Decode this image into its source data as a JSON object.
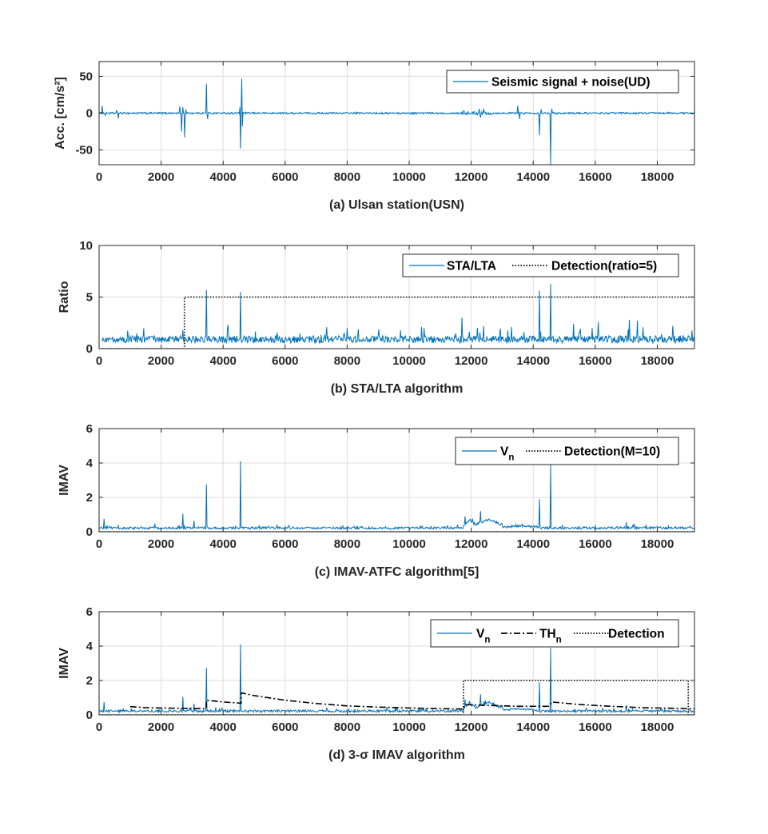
{
  "colors": {
    "signal": "#0072BD",
    "axis": "#262626",
    "grid": "#dcdcdc",
    "detection": "#000000"
  },
  "chart_data": [
    {
      "type": "line",
      "xlabel": "(a) Ulsan station(USN)",
      "ylabel": "Acc. [cm/s²]",
      "xlim": [
        0,
        19200
      ],
      "ylim": [
        -70,
        70
      ],
      "xticks": [
        0,
        2000,
        4000,
        6000,
        8000,
        10000,
        12000,
        14000,
        16000,
        18000
      ],
      "yticks": [
        -50,
        0,
        50
      ],
      "grid": true,
      "legend_position": "top-right",
      "series": [
        {
          "name": "Seismic signal + noise(UD)",
          "style": "solid",
          "baseline_noise": 1.2,
          "segments": [
            [
              11700,
              12700,
              2.2
            ]
          ],
          "spikes": [
            [
              100,
              10
            ],
            [
              200,
              -3
            ],
            [
              550,
              4
            ],
            [
              620,
              -7
            ],
            [
              2600,
              9
            ],
            [
              2650,
              -25
            ],
            [
              2700,
              8
            ],
            [
              2750,
              -33
            ],
            [
              2800,
              5
            ],
            [
              3450,
              40
            ],
            [
              3500,
              -8
            ],
            [
              4530,
              8
            ],
            [
              4560,
              -48
            ],
            [
              4590,
              47
            ],
            [
              4620,
              -18
            ],
            [
              11750,
              4
            ],
            [
              12250,
              6
            ],
            [
              12300,
              -6
            ],
            [
              12400,
              6
            ],
            [
              13500,
              10
            ],
            [
              13550,
              -8
            ],
            [
              14200,
              -30
            ],
            [
              14250,
              5
            ],
            [
              14550,
              -70
            ],
            [
              14600,
              6
            ]
          ]
        }
      ]
    },
    {
      "type": "line",
      "xlabel": "(b) STA/LTA algorithm",
      "ylabel": "Ratio",
      "xlim": [
        0,
        19200
      ],
      "ylim": [
        0,
        10
      ],
      "xticks": [
        0,
        2000,
        4000,
        6000,
        8000,
        10000,
        12000,
        14000,
        16000,
        18000
      ],
      "yticks": [
        0,
        5,
        10
      ],
      "grid": true,
      "legend_position": "top-right",
      "series": [
        {
          "name": "STA/LTA",
          "style": "solid",
          "baseline": 0.9,
          "noise": 0.35,
          "start": 100,
          "spikes": [
            [
              2700,
              1.8
            ],
            [
              3450,
              5.7
            ],
            [
              4150,
              2.3
            ],
            [
              4560,
              5.5
            ],
            [
              11700,
              3.0
            ],
            [
              12200,
              2.0
            ],
            [
              12400,
              2.2
            ],
            [
              13300,
              2.1
            ],
            [
              14200,
              5.6
            ],
            [
              14550,
              6.3
            ],
            [
              15300,
              2.4
            ],
            [
              16100,
              2.6
            ],
            [
              17100,
              2.8
            ],
            [
              17350,
              2.7
            ],
            [
              18500,
              2.2
            ]
          ]
        },
        {
          "name": "Detection(ratio=5)",
          "style": "dotted",
          "points": [
            [
              100,
              0
            ],
            [
              2750,
              0
            ],
            [
              2750,
              5
            ],
            [
              19200,
              5
            ]
          ]
        }
      ]
    },
    {
      "type": "line",
      "xlabel": "(c) IMAV-ATFC algorithm[5]",
      "ylabel": "IMAV",
      "xlim": [
        0,
        19200
      ],
      "ylim": [
        0,
        6
      ],
      "xticks": [
        0,
        2000,
        4000,
        6000,
        8000,
        10000,
        12000,
        14000,
        16000,
        18000
      ],
      "yticks": [
        0,
        2,
        4,
        6
      ],
      "grid": true,
      "legend_position": "top-right",
      "series": [
        {
          "name": "V",
          "name_subscript": "n",
          "style": "solid",
          "baseline": 0.22,
          "noise": 0.07,
          "bumps": [
            [
              11750,
              12150,
              0.45
            ],
            [
              12150,
              13000,
              0.5
            ],
            [
              13000,
              14200,
              0.12
            ]
          ],
          "spikes": [
            [
              150,
              0.75
            ],
            [
              2700,
              1.05
            ],
            [
              3050,
              0.65
            ],
            [
              3450,
              2.75
            ],
            [
              4560,
              4.1
            ],
            [
              11800,
              0.9
            ],
            [
              12300,
              1.2
            ],
            [
              14200,
              1.9
            ],
            [
              14550,
              3.9
            ],
            [
              17000,
              0.55
            ]
          ]
        },
        {
          "name": "Detection(M=10)",
          "style": "dotted",
          "points": [
            [
              0,
              0
            ],
            [
              19200,
              0
            ]
          ]
        }
      ]
    },
    {
      "type": "line",
      "xlabel": "(d) 3-σ IMAV algorithm",
      "ylabel": "IMAV",
      "xlim": [
        0,
        19200
      ],
      "ylim": [
        0,
        6
      ],
      "xticks": [
        0,
        2000,
        4000,
        6000,
        8000,
        10000,
        12000,
        14000,
        16000,
        18000
      ],
      "yticks": [
        0,
        2,
        4,
        6
      ],
      "grid": true,
      "legend_position": "top-right",
      "series": [
        {
          "name": "V",
          "name_subscript": "n",
          "style": "solid",
          "baseline": 0.22,
          "noise": 0.07,
          "bumps": [
            [
              11750,
              12150,
              0.45
            ],
            [
              12150,
              13000,
              0.5
            ],
            [
              13000,
              14200,
              0.12
            ]
          ],
          "spikes": [
            [
              150,
              0.75
            ],
            [
              2700,
              1.05
            ],
            [
              3050,
              0.65
            ],
            [
              3450,
              2.75
            ],
            [
              4560,
              4.1
            ],
            [
              11800,
              0.9
            ],
            [
              12300,
              1.2
            ],
            [
              14200,
              1.9
            ],
            [
              14550,
              3.9
            ],
            [
              17000,
              0.55
            ]
          ]
        },
        {
          "name": "TH",
          "name_subscript": "n",
          "style": "dashdot",
          "points": [
            [
              1000,
              0.48
            ],
            [
              1500,
              0.42
            ],
            [
              2500,
              0.38
            ],
            [
              3450,
              0.36
            ],
            [
              3460,
              0.85
            ],
            [
              4000,
              0.75
            ],
            [
              4580,
              0.68
            ],
            [
              4590,
              1.28
            ],
            [
              5000,
              1.12
            ],
            [
              6000,
              0.85
            ],
            [
              7000,
              0.66
            ],
            [
              8000,
              0.52
            ],
            [
              9000,
              0.45
            ],
            [
              10000,
              0.4
            ],
            [
              11000,
              0.36
            ],
            [
              11750,
              0.34
            ],
            [
              11800,
              0.6
            ],
            [
              12500,
              0.55
            ],
            [
              13500,
              0.5
            ],
            [
              14500,
              0.5
            ],
            [
              14600,
              0.75
            ],
            [
              15500,
              0.6
            ],
            [
              16500,
              0.5
            ],
            [
              17500,
              0.42
            ],
            [
              18500,
              0.38
            ],
            [
              19200,
              0.35
            ]
          ]
        },
        {
          "name": "Detection",
          "style": "dotted",
          "points": [
            [
              0,
              0
            ],
            [
              11750,
              0
            ],
            [
              11750,
              2
            ],
            [
              19000,
              2
            ],
            [
              19000,
              0
            ],
            [
              19200,
              0
            ]
          ]
        }
      ]
    }
  ]
}
